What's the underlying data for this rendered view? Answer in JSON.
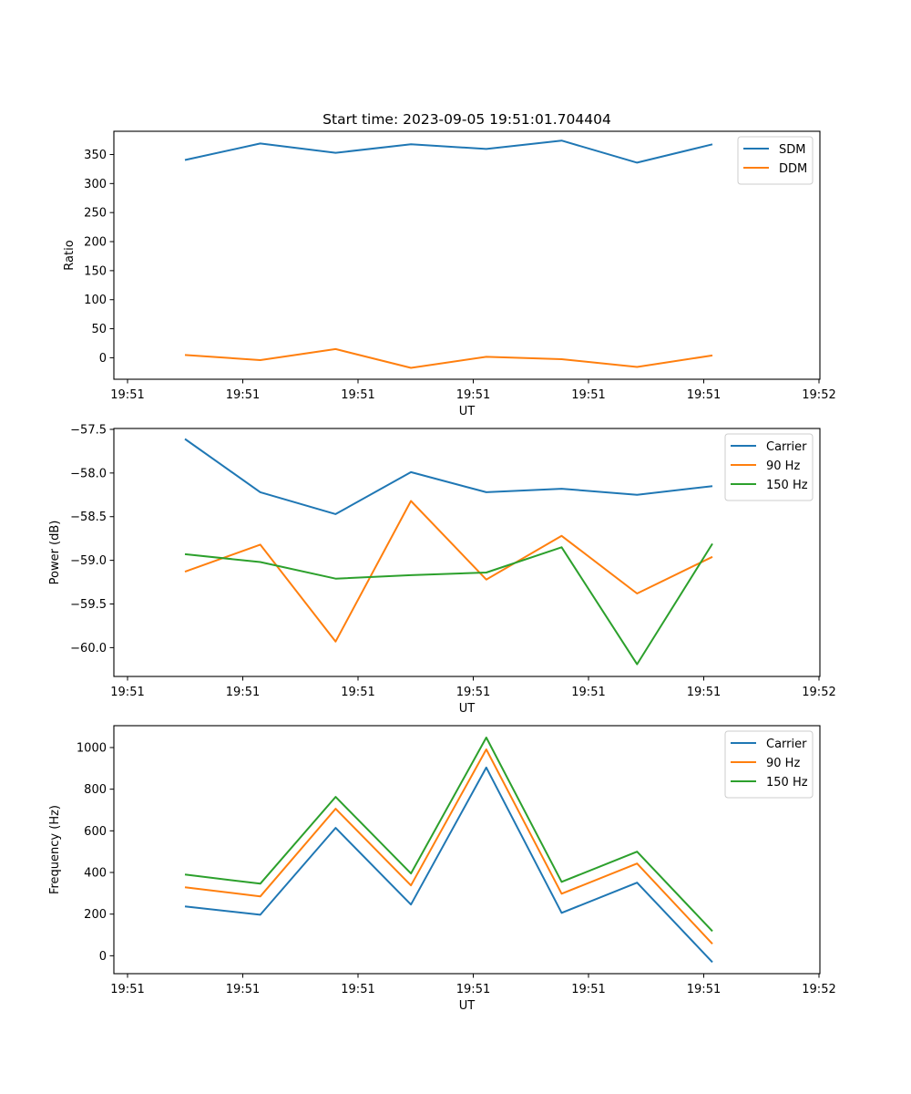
{
  "figure": {
    "title": "Start time: 2023-09-05 19:51:01.704404"
  },
  "chart_data": [
    {
      "type": "line",
      "title": "Start time: 2023-09-05 19:51:01.704404",
      "xlabel": "UT",
      "ylabel": "Ratio",
      "x_tick_labels": [
        "19:51",
        "19:51",
        "19:51",
        "19:51",
        "19:51",
        "19:51",
        "19:52"
      ],
      "x_index": [
        1,
        2,
        3,
        4,
        5,
        6,
        7,
        8
      ],
      "ylim": [
        -37,
        390
      ],
      "y_ticks": [
        0,
        50,
        100,
        150,
        200,
        250,
        300,
        350
      ],
      "legend_position": "top-right",
      "grid": false,
      "series": [
        {
          "name": "SDM",
          "color": "#1f77b4",
          "values": [
            340.5,
            369,
            353,
            367.5,
            359.5,
            374,
            336,
            367.5
          ]
        },
        {
          "name": "DDM",
          "color": "#ff7f0e",
          "values": [
            4.8,
            -4,
            15,
            -17.4,
            1.6,
            -2.4,
            -15.8,
            4
          ]
        }
      ]
    },
    {
      "type": "line",
      "title": "",
      "xlabel": "UT",
      "ylabel": "Power (dB)",
      "x_tick_labels": [
        "19:51",
        "19:51",
        "19:51",
        "19:51",
        "19:51",
        "19:51",
        "19:52"
      ],
      "x_index": [
        1,
        2,
        3,
        4,
        5,
        6,
        7,
        8
      ],
      "ylim": [
        -60.33,
        -57.49
      ],
      "y_ticks": [
        -60.0,
        -59.5,
        -59.0,
        -58.5,
        -58.0,
        -57.5
      ],
      "y_tick_labels": [
        "−60.0",
        "−59.5",
        "−59.0",
        "−58.5",
        "−58.0",
        "−57.5"
      ],
      "legend_position": "top-right",
      "grid": false,
      "series": [
        {
          "name": "Carrier",
          "color": "#1f77b4",
          "values": [
            -57.61,
            -58.22,
            -58.47,
            -57.99,
            -58.22,
            -58.18,
            -58.25,
            -58.15
          ]
        },
        {
          "name": "90 Hz",
          "color": "#ff7f0e",
          "values": [
            -59.13,
            -58.82,
            -59.93,
            -58.32,
            -59.22,
            -58.72,
            -59.38,
            -58.96
          ]
        },
        {
          "name": "150 Hz",
          "color": "#2ca02c",
          "values": [
            -58.93,
            -59.02,
            -59.21,
            -59.17,
            -59.14,
            -58.85,
            -60.19,
            -58.81
          ]
        }
      ]
    },
    {
      "type": "line",
      "title": "",
      "xlabel": "UT",
      "ylabel": "Frequency (Hz)",
      "x_tick_labels": [
        "19:51",
        "19:51",
        "19:51",
        "19:51",
        "19:51",
        "19:51",
        "19:52"
      ],
      "x_index": [
        1,
        2,
        3,
        4,
        5,
        6,
        7,
        8
      ],
      "ylim": [
        -86,
        1105
      ],
      "y_ticks": [
        0,
        200,
        400,
        600,
        800,
        1000
      ],
      "legend_position": "top-right",
      "grid": false,
      "series": [
        {
          "name": "Carrier",
          "color": "#1f77b4",
          "values": [
            237,
            197,
            614,
            246,
            904,
            206,
            351,
            -31
          ]
        },
        {
          "name": "90 Hz",
          "color": "#ff7f0e",
          "values": [
            329,
            285,
            706,
            338,
            991,
            298,
            443,
            57
          ]
        },
        {
          "name": "150 Hz",
          "color": "#2ca02c",
          "values": [
            390,
            346,
            763,
            395,
            1048,
            355,
            500,
            118
          ]
        }
      ]
    }
  ]
}
